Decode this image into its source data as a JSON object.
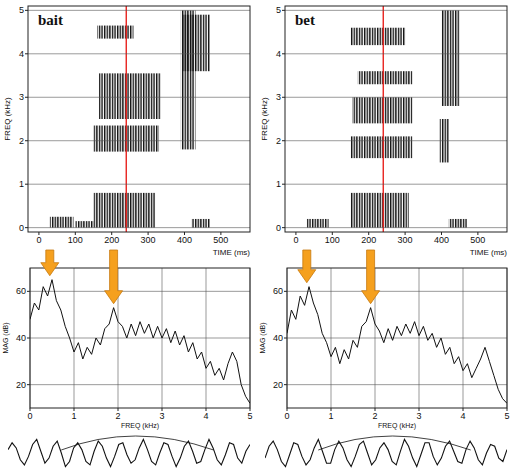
{
  "chart_data": [
    {
      "type": "spectrogram",
      "title": "bait",
      "xlabel": "TIME (ms)",
      "ylabel": "FREQ (kHz)",
      "xlim": [
        -30,
        580
      ],
      "xticks": [
        0,
        100,
        200,
        300,
        400,
        500
      ],
      "ylim": [
        -0.1,
        5.1
      ],
      "yticks": [
        0,
        1,
        2,
        3,
        4,
        5
      ],
      "grid": "y",
      "cursor": 240,
      "regions": [
        {
          "time": [
            30,
            95
          ],
          "freq": [
            0,
            0.25
          ]
        },
        {
          "time": [
            100,
            150
          ],
          "freq": [
            0,
            0.15
          ]
        },
        {
          "time": [
            150,
            320
          ],
          "freq": [
            0,
            0.8
          ]
        },
        {
          "time": [
            150,
            330
          ],
          "freq": [
            1.75,
            2.35
          ]
        },
        {
          "time": [
            165,
            335
          ],
          "freq": [
            2.5,
            3.55
          ]
        },
        {
          "time": [
            160,
            260
          ],
          "freq": [
            4.35,
            4.65
          ]
        },
        {
          "time": [
            390,
            430
          ],
          "freq": [
            1.8,
            5.0
          ]
        },
        {
          "time": [
            395,
            470
          ],
          "freq": [
            3.6,
            4.9
          ]
        },
        {
          "time": [
            420,
            470
          ],
          "freq": [
            0,
            0.2
          ]
        }
      ]
    },
    {
      "type": "spectrogram",
      "title": "bet",
      "xlabel": "TIME (ms)",
      "ylabel": "FREQ (kHz)",
      "xlim": [
        -30,
        580
      ],
      "xticks": [
        0,
        100,
        200,
        300,
        400,
        500
      ],
      "ylim": [
        -0.1,
        5.1
      ],
      "yticks": [
        0,
        1,
        2,
        3,
        4,
        5
      ],
      "grid": "y",
      "cursor": 240,
      "regions": [
        {
          "time": [
            30,
            90
          ],
          "freq": [
            0,
            0.2
          ]
        },
        {
          "time": [
            150,
            310
          ],
          "freq": [
            0,
            0.8
          ]
        },
        {
          "time": [
            150,
            320
          ],
          "freq": [
            1.6,
            2.1
          ]
        },
        {
          "time": [
            155,
            320
          ],
          "freq": [
            2.4,
            3.0
          ]
        },
        {
          "time": [
            170,
            320
          ],
          "freq": [
            3.3,
            3.6
          ]
        },
        {
          "time": [
            150,
            300
          ],
          "freq": [
            4.2,
            4.6
          ]
        },
        {
          "time": [
            400,
            450
          ],
          "freq": [
            2.8,
            5.0
          ]
        },
        {
          "time": [
            395,
            420
          ],
          "freq": [
            1.5,
            2.5
          ]
        },
        {
          "time": [
            420,
            470
          ],
          "freq": [
            0,
            0.2
          ]
        }
      ]
    },
    {
      "type": "line",
      "xlabel": "FREQ (kHz)",
      "ylabel": "MAG (dB)",
      "xlim": [
        0,
        5
      ],
      "xticks": [
        0,
        1,
        2,
        3,
        4,
        5
      ],
      "ylim": [
        10,
        70
      ],
      "yticks": [
        20,
        40,
        60
      ],
      "grid": true,
      "arrows": [
        0.45,
        1.9
      ],
      "x": [
        0,
        0.1,
        0.2,
        0.3,
        0.4,
        0.5,
        0.6,
        0.7,
        0.8,
        0.9,
        1,
        1.1,
        1.2,
        1.3,
        1.4,
        1.5,
        1.6,
        1.7,
        1.8,
        1.9,
        2,
        2.1,
        2.2,
        2.3,
        2.4,
        2.5,
        2.6,
        2.7,
        2.8,
        2.9,
        3,
        3.1,
        3.2,
        3.3,
        3.4,
        3.5,
        3.6,
        3.7,
        3.8,
        3.9,
        4,
        4.1,
        4.2,
        4.3,
        4.4,
        4.5,
        4.6,
        4.7,
        4.8,
        4.9,
        5
      ],
      "values": [
        48,
        55,
        52,
        62,
        58,
        65,
        56,
        52,
        45,
        40,
        34,
        38,
        31,
        36,
        33,
        40,
        37,
        44,
        46,
        53,
        47,
        45,
        40,
        46,
        41,
        47,
        42,
        46,
        40,
        45,
        40,
        44,
        38,
        43,
        37,
        41,
        34,
        38,
        31,
        34,
        27,
        30,
        24,
        27,
        22,
        29,
        34,
        30,
        20,
        15,
        12
      ]
    },
    {
      "type": "line",
      "xlabel": "FREQ (kHz)",
      "ylabel": "MAG (dB)",
      "xlim": [
        0,
        5
      ],
      "xticks": [
        0,
        1,
        2,
        3,
        4,
        5
      ],
      "ylim": [
        10,
        70
      ],
      "yticks": [
        20,
        40,
        60
      ],
      "grid": true,
      "arrows": [
        0.45,
        1.9
      ],
      "x": [
        0,
        0.1,
        0.2,
        0.3,
        0.4,
        0.5,
        0.6,
        0.7,
        0.8,
        0.9,
        1,
        1.1,
        1.2,
        1.3,
        1.4,
        1.5,
        1.6,
        1.7,
        1.8,
        1.9,
        2,
        2.1,
        2.2,
        2.3,
        2.4,
        2.5,
        2.6,
        2.7,
        2.8,
        2.9,
        3,
        3.1,
        3.2,
        3.3,
        3.4,
        3.5,
        3.6,
        3.7,
        3.8,
        3.9,
        4,
        4.1,
        4.2,
        4.3,
        4.4,
        4.5,
        4.6,
        4.7,
        4.8,
        4.9,
        5
      ],
      "values": [
        42,
        52,
        48,
        58,
        54,
        62,
        55,
        50,
        42,
        38,
        32,
        36,
        29,
        35,
        31,
        39,
        36,
        45,
        47,
        53,
        46,
        43,
        38,
        44,
        39,
        45,
        41,
        46,
        42,
        47,
        41,
        45,
        39,
        42,
        36,
        40,
        33,
        36,
        29,
        32,
        26,
        29,
        23,
        27,
        31,
        36,
        30,
        24,
        18,
        14,
        12
      ]
    },
    {
      "type": "waveform",
      "ylim": [
        -1,
        1
      ],
      "tick_labels": false,
      "values": [
        0.2,
        0.6,
        0.3,
        -0.4,
        -0.7,
        -0.2,
        0.5,
        0.8,
        0.1,
        -0.6,
        -0.3,
        0.4,
        0.7,
        0.0,
        -0.8,
        -0.5,
        0.3,
        0.6,
        0.2,
        -0.5,
        -0.7,
        0.1,
        0.7,
        0.4,
        -0.3,
        -0.8,
        -0.2,
        0.5,
        0.6,
        -0.1,
        -0.6,
        -0.4,
        0.3,
        0.8,
        0.2,
        -0.5,
        -0.7,
        0.0,
        0.6,
        0.5,
        -0.2,
        -0.8,
        -0.3,
        0.4,
        0.7,
        0.1,
        -0.6,
        -0.5,
        0.2,
        0.8,
        0.3,
        -0.4,
        -0.7,
        -0.1,
        0.6,
        0.5,
        -0.3,
        -0.6,
        0.1,
        0.5
      ]
    },
    {
      "type": "waveform",
      "ylim": [
        -1,
        1
      ],
      "tick_labels": false,
      "values": [
        -0.3,
        0.4,
        0.7,
        0.2,
        -0.5,
        -0.8,
        -0.1,
        0.6,
        0.5,
        -0.2,
        -0.7,
        -0.4,
        0.3,
        0.8,
        0.1,
        -0.6,
        -0.6,
        0.2,
        0.7,
        0.3,
        -0.4,
        -0.8,
        -0.2,
        0.5,
        0.7,
        0.0,
        -0.7,
        -0.4,
        0.3,
        0.6,
        0.2,
        -0.5,
        -0.7,
        0.1,
        0.8,
        0.4,
        -0.3,
        -0.8,
        -0.1,
        0.6,
        0.6,
        -0.2,
        -0.7,
        -0.3,
        0.4,
        0.7,
        0.1,
        -0.5,
        -0.6,
        0.2,
        0.7,
        0.3,
        -0.4,
        -0.7,
        0.0,
        0.5,
        0.4,
        -0.3,
        -0.5,
        0.2
      ]
    }
  ]
}
